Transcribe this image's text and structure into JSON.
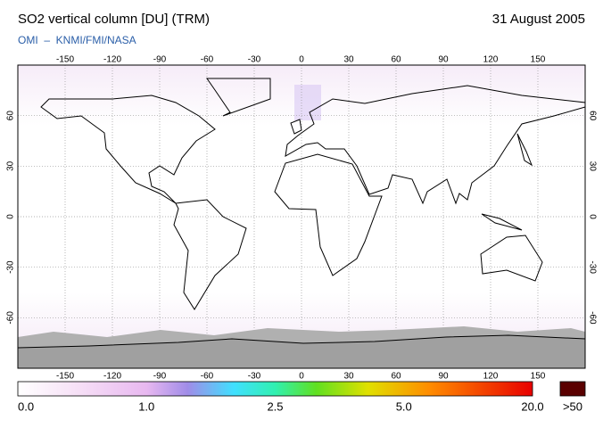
{
  "header": {
    "title": "SO2 vertical column [DU] (TRM)",
    "date": "31 August 2005",
    "subtitle": "OMI  –  KNMI/FMI/NASA"
  },
  "map": {
    "lon_range": [
      -180,
      180
    ],
    "lat_range": [
      -90,
      90
    ],
    "lon_ticks": [
      -150,
      -120,
      -90,
      -60,
      -30,
      0,
      30,
      60,
      90,
      120,
      150
    ],
    "lat_ticks": [
      60,
      30,
      0,
      -30,
      -60
    ]
  },
  "colorbar": {
    "labels": [
      "0.0",
      "1.0",
      "2.5",
      "5.0",
      "20.0"
    ],
    "overflow": ">50"
  }
}
